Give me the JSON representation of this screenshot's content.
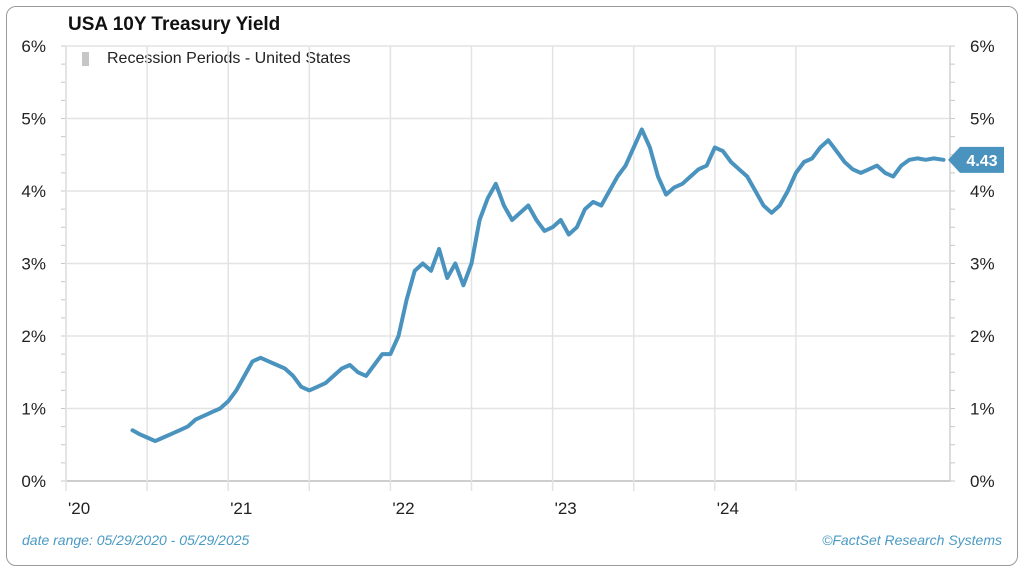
{
  "chart_data": {
    "type": "line",
    "title": "USA 10Y Treasury Yield",
    "legend": [
      {
        "label": "Recession Periods - United States",
        "color": "#c6c6c6"
      }
    ],
    "ylim": [
      0,
      6
    ],
    "y_ticks": [
      0,
      1,
      2,
      3,
      4,
      5,
      6
    ],
    "y_tick_labels": [
      "0%",
      "1%",
      "2%",
      "3%",
      "4%",
      "5%",
      "6%"
    ],
    "x_ticks": [
      2020.0,
      2021.0,
      2022.0,
      2023.0,
      2024.0
    ],
    "x_tick_labels": [
      "'20",
      "'21",
      "'22",
      "'23",
      "'24"
    ],
    "xlim": [
      2020.0,
      2025.45
    ],
    "series": [
      {
        "name": "USA 10Y Treasury Yield",
        "color": "#4a93bf",
        "x": [
          2020.41,
          2020.45,
          2020.5,
          2020.55,
          2020.6,
          2020.65,
          2020.7,
          2020.75,
          2020.8,
          2020.85,
          2020.9,
          2020.95,
          2021.0,
          2021.05,
          2021.1,
          2021.15,
          2021.2,
          2021.25,
          2021.3,
          2021.35,
          2021.4,
          2021.45,
          2021.5,
          2021.55,
          2021.6,
          2021.65,
          2021.7,
          2021.75,
          2021.8,
          2021.85,
          2021.9,
          2021.95,
          2022.0,
          2022.05,
          2022.1,
          2022.15,
          2022.2,
          2022.25,
          2022.3,
          2022.35,
          2022.4,
          2022.45,
          2022.5,
          2022.55,
          2022.6,
          2022.65,
          2022.7,
          2022.75,
          2022.8,
          2022.85,
          2022.9,
          2022.95,
          2023.0,
          2023.05,
          2023.1,
          2023.15,
          2023.2,
          2023.25,
          2023.3,
          2023.35,
          2023.4,
          2023.45,
          2023.5,
          2023.55,
          2023.6,
          2023.65,
          2023.7,
          2023.75,
          2023.8,
          2023.85,
          2023.9,
          2023.95,
          2024.0,
          2024.05,
          2024.1,
          2024.15,
          2024.2,
          2024.25,
          2024.3,
          2024.35,
          2024.4,
          2024.45,
          2024.5,
          2024.55,
          2024.6,
          2024.65,
          2024.7,
          2024.75,
          2024.8,
          2024.85,
          2024.9,
          2024.95,
          2025.0,
          2025.05,
          2025.1,
          2025.15,
          2025.2,
          2025.25,
          2025.3,
          2025.35,
          2025.41
        ],
        "values": [
          0.7,
          0.65,
          0.6,
          0.55,
          0.6,
          0.65,
          0.7,
          0.75,
          0.85,
          0.9,
          0.95,
          1.0,
          1.1,
          1.25,
          1.45,
          1.65,
          1.7,
          1.65,
          1.6,
          1.55,
          1.45,
          1.3,
          1.25,
          1.3,
          1.35,
          1.45,
          1.55,
          1.6,
          1.5,
          1.45,
          1.6,
          1.75,
          1.75,
          2.0,
          2.5,
          2.9,
          3.0,
          2.9,
          3.2,
          2.8,
          3.0,
          2.7,
          3.0,
          3.6,
          3.9,
          4.1,
          3.8,
          3.6,
          3.7,
          3.8,
          3.6,
          3.45,
          3.5,
          3.6,
          3.4,
          3.5,
          3.75,
          3.85,
          3.8,
          4.0,
          4.2,
          4.35,
          4.6,
          4.85,
          4.6,
          4.2,
          3.95,
          4.05,
          4.1,
          4.2,
          4.3,
          4.35,
          4.6,
          4.55,
          4.4,
          4.3,
          4.2,
          4.0,
          3.8,
          3.7,
          3.8,
          4.0,
          4.25,
          4.4,
          4.45,
          4.6,
          4.7,
          4.55,
          4.4,
          4.3,
          4.25,
          4.3,
          4.35,
          4.25,
          4.2,
          4.35,
          4.43,
          4.45,
          4.43,
          4.45,
          4.43
        ]
      }
    ],
    "last_value_label": "4.43",
    "date_range_label": "date range: 05/29/2020 - 05/29/2025",
    "source_label": "©FactSet Research Systems"
  }
}
